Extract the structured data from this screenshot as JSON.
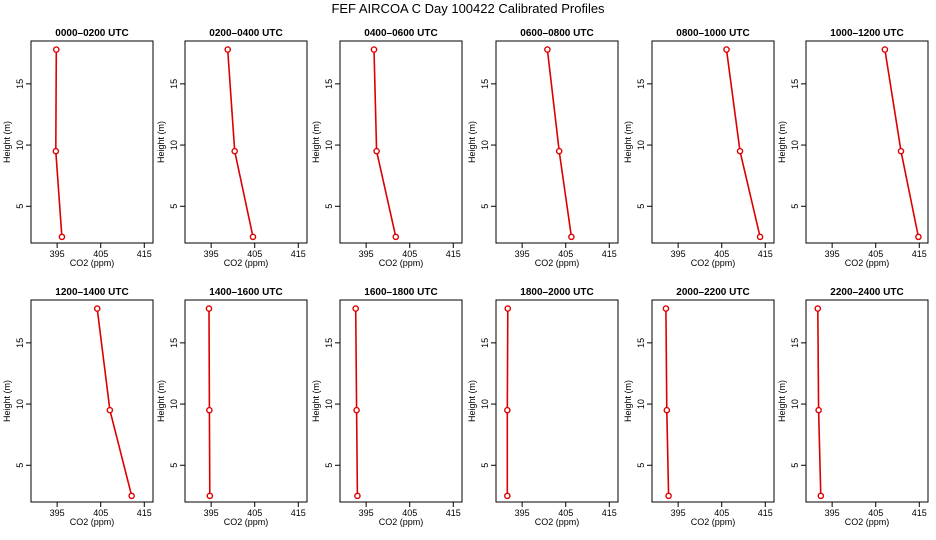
{
  "title": "FEF AIRCOA C  Day 100422  Calibrated Profiles",
  "axes": {
    "xlabel": "CO2 (ppm)",
    "ylabel": "Height (m)",
    "xticks": [
      395,
      405,
      415
    ],
    "yticks": [
      5,
      10,
      15
    ],
    "xlim": [
      389,
      417
    ],
    "ylim": [
      2,
      18.5
    ],
    "line_color": "#dd0000",
    "marker": "open-circle"
  },
  "chart_data": [
    {
      "type": "line",
      "title": "0000–0200 UTC",
      "x": [
        394.8,
        394.7,
        396.1
      ],
      "y": [
        17.8,
        9.5,
        2.5
      ]
    },
    {
      "type": "line",
      "title": "0200–0400 UTC",
      "x": [
        398.8,
        400.4,
        404.6
      ],
      "y": [
        17.8,
        9.5,
        2.5
      ]
    },
    {
      "type": "line",
      "title": "0400–0600 UTC",
      "x": [
        396.8,
        397.4,
        401.8
      ],
      "y": [
        17.8,
        9.5,
        2.5
      ]
    },
    {
      "type": "line",
      "title": "0600–0800 UTC",
      "x": [
        400.8,
        403.5,
        406.3
      ],
      "y": [
        17.8,
        9.5,
        2.5
      ]
    },
    {
      "type": "line",
      "title": "0800–1000 UTC",
      "x": [
        406.1,
        409.2,
        413.8
      ],
      "y": [
        17.8,
        9.5,
        2.5
      ]
    },
    {
      "type": "line",
      "title": "1000–1200 UTC",
      "x": [
        407.1,
        410.8,
        414.8
      ],
      "y": [
        17.8,
        9.5,
        2.5
      ]
    },
    {
      "type": "line",
      "title": "1200–1400 UTC",
      "x": [
        404.2,
        407.1,
        412.1
      ],
      "y": [
        17.8,
        9.5,
        2.5
      ]
    },
    {
      "type": "line",
      "title": "1400–1600 UTC",
      "x": [
        394.5,
        394.6,
        394.7
      ],
      "y": [
        17.8,
        9.5,
        2.5
      ]
    },
    {
      "type": "line",
      "title": "1600–1800 UTC",
      "x": [
        392.6,
        392.8,
        393.0
      ],
      "y": [
        17.8,
        9.5,
        2.5
      ]
    },
    {
      "type": "line",
      "title": "1800–2000 UTC",
      "x": [
        391.7,
        391.6,
        391.6
      ],
      "y": [
        17.8,
        9.5,
        2.5
      ]
    },
    {
      "type": "line",
      "title": "2000–2200 UTC",
      "x": [
        392.2,
        392.4,
        392.8
      ],
      "y": [
        17.8,
        9.5,
        2.5
      ]
    },
    {
      "type": "line",
      "title": "2200–2400 UTC",
      "x": [
        391.7,
        391.9,
        392.4
      ],
      "y": [
        17.8,
        9.5,
        2.5
      ]
    }
  ]
}
